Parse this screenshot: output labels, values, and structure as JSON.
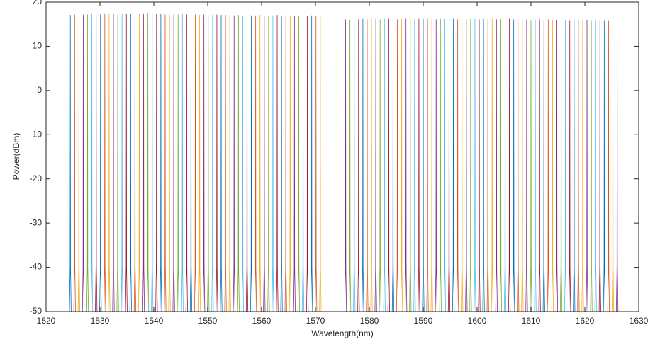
{
  "chart_data": {
    "type": "spectrum",
    "x_label": "Wavelength(nm)",
    "y_label": "Power(dBm)",
    "xlim": [
      1520,
      1630
    ],
    "ylim": [
      -50,
      20
    ],
    "xticks": [
      1520,
      1530,
      1540,
      1550,
      1560,
      1570,
      1580,
      1590,
      1600,
      1610,
      1620,
      1630
    ],
    "yticks": [
      -50,
      -40,
      -30,
      -20,
      -10,
      0,
      10,
      20
    ],
    "colors": [
      "#0072BD",
      "#D95319",
      "#EDB120",
      "#7E2F8E",
      "#77AC30",
      "#4DBEEE",
      "#A2142F"
    ],
    "x": [
      1524.5,
      1525.3,
      1526.1,
      1526.9,
      1527.7,
      1528.5,
      1529.3,
      1530.1,
      1530.9,
      1531.7,
      1532.5,
      1533.3,
      1534.1,
      1534.9,
      1535.7,
      1536.5,
      1537.3,
      1538.1,
      1538.9,
      1539.7,
      1540.5,
      1541.3,
      1542.1,
      1542.9,
      1543.7,
      1544.5,
      1545.3,
      1546.1,
      1546.9,
      1547.7,
      1548.5,
      1549.3,
      1550.1,
      1550.9,
      1551.7,
      1552.5,
      1553.3,
      1554.1,
      1554.9,
      1555.7,
      1556.5,
      1557.3,
      1558.1,
      1558.9,
      1559.7,
      1560.5,
      1561.3,
      1562.1,
      1562.9,
      1563.7,
      1564.5,
      1565.3,
      1566.1,
      1566.9,
      1567.7,
      1568.5,
      1569.3,
      1570.1,
      1570.9,
      1575.6,
      1576.4,
      1577.2,
      1578.0,
      1578.8,
      1579.6,
      1580.4,
      1581.2,
      1582.0,
      1582.8,
      1583.6,
      1584.4,
      1585.2,
      1586.0,
      1586.8,
      1587.6,
      1588.4,
      1589.2,
      1590.0,
      1590.8,
      1591.6,
      1592.4,
      1593.2,
      1594.0,
      1594.8,
      1595.6,
      1596.4,
      1597.2,
      1598.0,
      1598.8,
      1599.6,
      1600.4,
      1601.2,
      1602.0,
      1602.8,
      1603.6,
      1604.4,
      1605.2,
      1606.0,
      1606.8,
      1607.6,
      1608.4,
      1609.2,
      1610.0,
      1610.8,
      1611.6,
      1612.4,
      1613.2,
      1614.0,
      1614.8,
      1615.6,
      1616.4,
      1617.2,
      1618.0,
      1618.8,
      1619.6,
      1620.4,
      1621.2,
      1622.0,
      1622.8,
      1623.6,
      1624.4,
      1625.2,
      1626.0
    ],
    "values": [
      17.1,
      17.2,
      17.1,
      17.2,
      17.2,
      17.3,
      17.2,
      17.2,
      17.3,
      17.3,
      17.3,
      17.2,
      17.3,
      17.3,
      17.3,
      17.4,
      17.3,
      17.3,
      17.4,
      17.3,
      17.3,
      17.3,
      17.2,
      17.3,
      17.2,
      17.2,
      17.3,
      17.2,
      17.2,
      17.2,
      17.1,
      17.2,
      17.1,
      17.1,
      17.2,
      17.1,
      17.1,
      17.1,
      17.0,
      17.1,
      17.0,
      17.1,
      17.0,
      17.0,
      17.1,
      17.0,
      17.0,
      17.0,
      17.1,
      17.0,
      17.0,
      17.0,
      16.9,
      17.0,
      17.0,
      16.9,
      17.0,
      16.9,
      16.9,
      16.1,
      16.0,
      16.1,
      16.1,
      16.2,
      16.1,
      16.2,
      16.2,
      16.1,
      16.2,
      16.2,
      16.2,
      16.1,
      16.2,
      16.2,
      16.2,
      16.1,
      16.2,
      16.2,
      16.2,
      16.2,
      16.1,
      16.2,
      16.2,
      16.2,
      16.2,
      16.1,
      16.2,
      16.2,
      16.2,
      16.2,
      16.1,
      16.2,
      16.1,
      16.2,
      16.1,
      16.1,
      16.1,
      16.2,
      16.1,
      16.1,
      16.1,
      16.1,
      16.0,
      16.1,
      16.1,
      16.0,
      16.1,
      16.0,
      16.0,
      16.0,
      16.0,
      15.9,
      16.0,
      16.0,
      15.9,
      16.0,
      15.9,
      15.9,
      16.0,
      15.9,
      15.9,
      15.9,
      15.9
    ]
  }
}
